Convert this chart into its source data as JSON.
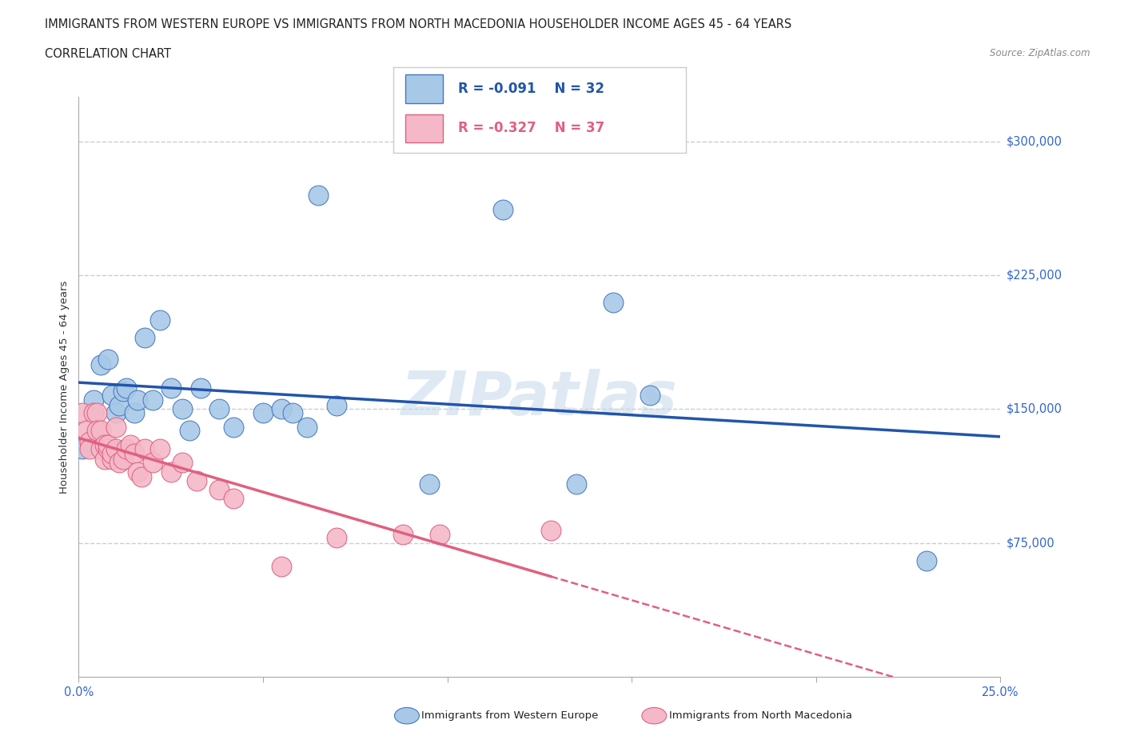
{
  "title_line1": "IMMIGRANTS FROM WESTERN EUROPE VS IMMIGRANTS FROM NORTH MACEDONIA HOUSEHOLDER INCOME AGES 45 - 64 YEARS",
  "title_line2": "CORRELATION CHART",
  "source_text": "Source: ZipAtlas.com",
  "ylabel": "Householder Income Ages 45 - 64 years",
  "watermark": "ZIPatlas",
  "blue_R": -0.091,
  "blue_N": 32,
  "pink_R": -0.327,
  "pink_N": 37,
  "xlim": [
    0,
    0.25
  ],
  "ylim": [
    0,
    325000
  ],
  "ytick_positions": [
    75000,
    150000,
    225000,
    300000
  ],
  "ytick_labels": [
    "$75,000",
    "$150,000",
    "$225,000",
    "$300,000"
  ],
  "blue_color": "#a8c8e8",
  "blue_edge_color": "#4477bb",
  "blue_line_color": "#2255aa",
  "pink_color": "#f4b8c8",
  "pink_edge_color": "#e06080",
  "pink_line_color": "#e06080",
  "grid_color": "#cccccc",
  "blue_scatter_x": [
    0.001,
    0.004,
    0.006,
    0.008,
    0.009,
    0.01,
    0.011,
    0.012,
    0.013,
    0.015,
    0.016,
    0.018,
    0.02,
    0.022,
    0.025,
    0.028,
    0.03,
    0.033,
    0.038,
    0.042,
    0.05,
    0.055,
    0.058,
    0.062,
    0.065,
    0.07,
    0.095,
    0.115,
    0.135,
    0.145,
    0.155,
    0.23
  ],
  "blue_scatter_y": [
    128000,
    155000,
    175000,
    178000,
    158000,
    148000,
    152000,
    160000,
    162000,
    148000,
    155000,
    190000,
    155000,
    200000,
    162000,
    150000,
    138000,
    162000,
    150000,
    140000,
    148000,
    150000,
    148000,
    140000,
    270000,
    152000,
    108000,
    262000,
    108000,
    210000,
    158000,
    65000
  ],
  "pink_scatter_x": [
    0.001,
    0.002,
    0.003,
    0.003,
    0.004,
    0.005,
    0.005,
    0.006,
    0.006,
    0.007,
    0.007,
    0.008,
    0.008,
    0.009,
    0.009,
    0.01,
    0.01,
    0.011,
    0.012,
    0.013,
    0.014,
    0.015,
    0.016,
    0.017,
    0.018,
    0.02,
    0.022,
    0.025,
    0.028,
    0.032,
    0.038,
    0.042,
    0.055,
    0.07,
    0.088,
    0.098,
    0.128
  ],
  "pink_scatter_y": [
    148000,
    138000,
    132000,
    128000,
    148000,
    148000,
    138000,
    138000,
    128000,
    122000,
    130000,
    128000,
    130000,
    122000,
    125000,
    128000,
    140000,
    120000,
    122000,
    128000,
    130000,
    125000,
    115000,
    112000,
    128000,
    120000,
    128000,
    115000,
    120000,
    110000,
    105000,
    100000,
    62000,
    78000,
    80000,
    80000,
    82000
  ]
}
